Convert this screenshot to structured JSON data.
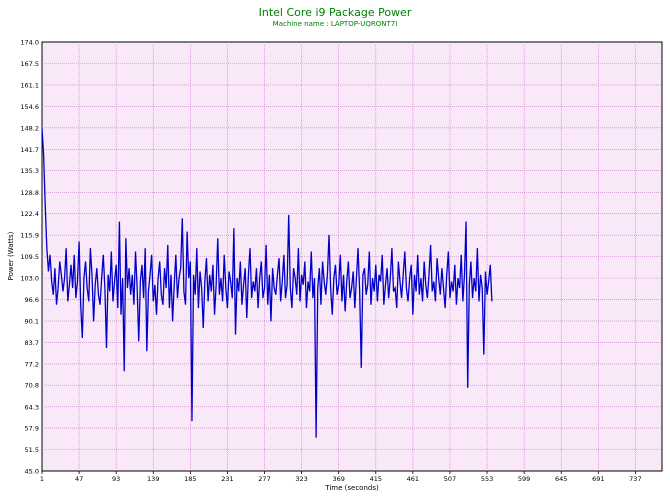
{
  "chart_data": {
    "type": "line",
    "title": "Intel Core i9 Package Power",
    "subtitle": "Machine name : LAPTOP-UQRONT7I",
    "xlabel": "Time (seconds)",
    "ylabel": "Power (Watts)",
    "xlim": [
      1,
      770
    ],
    "ylim": [
      45.0,
      174.0
    ],
    "x_ticks": [
      1,
      47,
      93,
      139,
      185,
      231,
      277,
      323,
      369,
      415,
      461,
      507,
      553,
      599,
      645,
      691,
      737
    ],
    "y_ticks": [
      "45.0",
      "51.5",
      "57.9",
      "64.3",
      "70.8",
      "77.2",
      "83.7",
      "90.1",
      "96.6",
      "103.0",
      "109.5",
      "115.9",
      "122.4",
      "128.8",
      "135.3",
      "141.7",
      "148.2",
      "154.6",
      "161.1",
      "167.5",
      "174.0"
    ],
    "grid": true,
    "background": "#f8e8f8",
    "grid_color": "#c078c0",
    "line_color": "#0000c8",
    "title_color": "#008000",
    "series": [
      {
        "x_start": 1,
        "x_step": 2,
        "values": [
          148,
          140,
          125,
          112,
          105,
          110,
          102,
          98,
          106,
          95,
          100,
          108,
          104,
          99,
          103,
          112,
          96,
          101,
          107,
          100,
          110,
          97,
          102,
          114,
          95,
          85,
          103,
          108,
          100,
          96,
          112,
          104,
          90,
          101,
          106,
          98,
          95,
          103,
          110,
          100,
          82,
          104,
          99,
          111,
          96,
          102,
          107,
          94,
          120,
          92,
          103,
          75,
          115,
          100,
          106,
          98,
          104,
          95,
          111,
          100,
          84,
          102,
          107,
          97,
          112,
          81,
          99,
          104,
          110,
          96,
          101,
          92,
          103,
          108,
          98,
          95,
          106,
          100,
          113,
          94,
          104,
          90,
          101,
          110,
          97,
          103,
          106,
          121,
          99,
          95,
          117,
          103,
          108,
          60,
          104,
          98,
          112,
          94,
          105,
          100,
          88,
          102,
          109,
          96,
          104,
          99,
          107,
          92,
          101,
          115,
          98,
          103,
          96,
          110,
          100,
          94,
          105,
          102,
          97,
          118,
          86,
          103,
          99,
          108,
          95,
          101,
          106,
          91,
          104,
          112,
          97,
          102,
          99,
          106,
          94,
          103,
          108,
          97,
          100,
          113,
          95,
          104,
          90,
          106,
          100,
          98,
          104,
          109,
          96,
          102,
          110,
          97,
          101,
          122,
          100,
          94,
          106,
          103,
          98,
          112,
          96,
          104,
          101,
          108,
          94,
          102,
          99,
          111,
          97,
          103,
          55,
          100,
          106,
          95,
          108,
          102,
          98,
          104,
          116,
          100,
          92,
          103,
          107,
          98,
          101,
          110,
          96,
          104,
          93,
          102,
          108,
          97,
          100,
          105,
          94,
          103,
          112,
          99,
          76,
          104,
          106,
          98,
          101,
          111,
          95,
          103,
          99,
          107,
          96,
          104,
          102,
          110,
          95,
          101,
          106,
          97,
          103,
          112,
          99,
          100,
          94,
          108,
          102,
          97,
          104,
          111,
          100,
          96,
          103,
          107,
          92,
          104,
          99,
          110,
          98,
          103,
          96,
          108,
          101,
          97,
          104,
          113,
          99,
          102,
          96,
          109,
          103,
          98,
          106,
          100,
          94,
          104,
          111,
          97,
          102,
          99,
          107,
          95,
          103,
          100,
          110,
          96,
          104,
          120,
          70,
          101,
          108,
          97,
          103,
          99,
          112,
          96,
          104,
          100,
          80,
          105,
          98,
          102,
          107,
          96
        ]
      }
    ]
  }
}
